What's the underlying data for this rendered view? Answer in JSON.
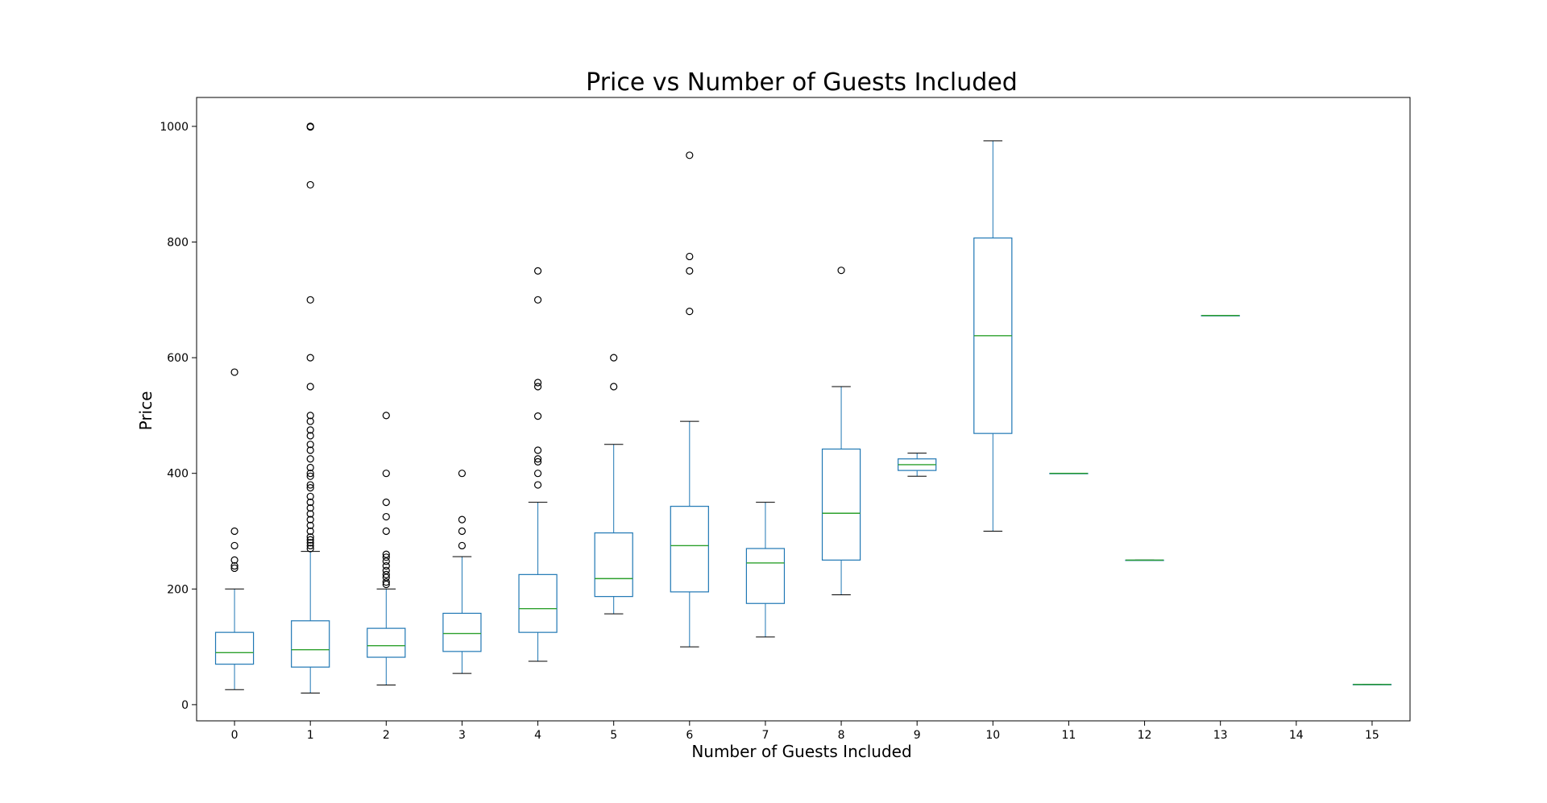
{
  "chart_data": {
    "type": "box",
    "title": "Price vs Number of Guests Included",
    "xlabel": "Number of Guests Included",
    "ylabel": "Price",
    "categories": [
      "0",
      "1",
      "2",
      "3",
      "4",
      "5",
      "6",
      "7",
      "8",
      "9",
      "10",
      "11",
      "12",
      "13",
      "14",
      "15"
    ],
    "ylim": [
      -28,
      1050
    ],
    "yticks": [
      0,
      200,
      400,
      600,
      800,
      1000
    ],
    "grid": false,
    "legend": "none",
    "colors": {
      "box": "#1f77b4",
      "median": "#2ca02c",
      "whisker": "#1f77b4",
      "cap": "#000000",
      "flier": "#000000"
    },
    "boxes": [
      {
        "category": "0",
        "whislo": 26,
        "q1": 70,
        "med": 90,
        "q3": 125,
        "whishi": 200,
        "fliers": [
          236,
          240,
          250,
          275,
          300,
          575
        ]
      },
      {
        "category": "1",
        "whislo": 20,
        "q1": 65,
        "med": 95,
        "q3": 145,
        "whishi": 265,
        "fliers": [
          270,
          275,
          280,
          285,
          290,
          300,
          310,
          320,
          330,
          340,
          350,
          360,
          375,
          380,
          395,
          400,
          410,
          425,
          440,
          450,
          465,
          475,
          490,
          500,
          550,
          600,
          700,
          899,
          999,
          1000
        ]
      },
      {
        "category": "2",
        "whislo": 34,
        "q1": 82,
        "med": 102,
        "q3": 132,
        "whishi": 200,
        "fliers": [
          208,
          212,
          220,
          225,
          232,
          240,
          248,
          255,
          260,
          300,
          325,
          350,
          400,
          500
        ]
      },
      {
        "category": "3",
        "whislo": 54,
        "q1": 92,
        "med": 123,
        "q3": 158,
        "whishi": 256,
        "fliers": [
          275,
          300,
          320,
          400
        ]
      },
      {
        "category": "4",
        "whislo": 75,
        "q1": 125,
        "med": 166,
        "q3": 225,
        "whishi": 350,
        "fliers": [
          380,
          400,
          420,
          425,
          440,
          499,
          550,
          557,
          700,
          750
        ]
      },
      {
        "category": "5",
        "whislo": 157,
        "q1": 187,
        "med": 218,
        "q3": 297,
        "whishi": 450,
        "fliers": [
          550,
          600
        ]
      },
      {
        "category": "6",
        "whislo": 100,
        "q1": 195,
        "med": 275,
        "q3": 343,
        "whishi": 490,
        "fliers": [
          680,
          750,
          775,
          950
        ]
      },
      {
        "category": "7",
        "whislo": 117,
        "q1": 175,
        "med": 245,
        "q3": 270,
        "whishi": 350,
        "fliers": []
      },
      {
        "category": "8",
        "whislo": 190,
        "q1": 250,
        "med": 331,
        "q3": 442,
        "whishi": 550,
        "fliers": [
          751
        ]
      },
      {
        "category": "9",
        "whislo": 395,
        "q1": 405,
        "med": 415,
        "q3": 425,
        "whishi": 435,
        "fliers": []
      },
      {
        "category": "10",
        "whislo": 300,
        "q1": 469,
        "med": 638,
        "q3": 807,
        "whishi": 975,
        "fliers": []
      },
      {
        "category": "11",
        "whislo": 400,
        "q1": 400,
        "med": 400,
        "q3": 400,
        "whishi": 400,
        "fliers": []
      },
      {
        "category": "12",
        "whislo": 250,
        "q1": 250,
        "med": 250,
        "q3": 250,
        "whishi": 250,
        "fliers": []
      },
      {
        "category": "13",
        "whislo": 673,
        "q1": 673,
        "med": 673,
        "q3": 673,
        "whishi": 673,
        "fliers": []
      },
      {
        "category": "14",
        "whislo": null,
        "q1": null,
        "med": null,
        "q3": null,
        "whishi": null,
        "fliers": []
      },
      {
        "category": "15",
        "whislo": 35,
        "q1": 35,
        "med": 35,
        "q3": 35,
        "whishi": 35,
        "fliers": []
      }
    ]
  }
}
